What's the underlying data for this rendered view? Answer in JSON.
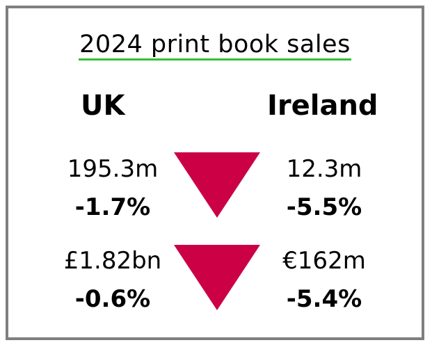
{
  "title": "2024 print book sales",
  "colors": {
    "underline": "#2fc12f",
    "decline": "#cc0045",
    "border": "#7f7f7f"
  },
  "columns": {
    "uk": {
      "label": "UK",
      "volume": "195.3m",
      "volume_change": "-1.7%",
      "value": "£1.82bn",
      "value_change": "-0.6%"
    },
    "ireland": {
      "label": "Ireland",
      "volume": "12.3m",
      "volume_change": "-5.5%",
      "value": "€162m",
      "value_change": "-5.4%"
    }
  },
  "indicators": {
    "icon": "down-triangle-icon"
  }
}
